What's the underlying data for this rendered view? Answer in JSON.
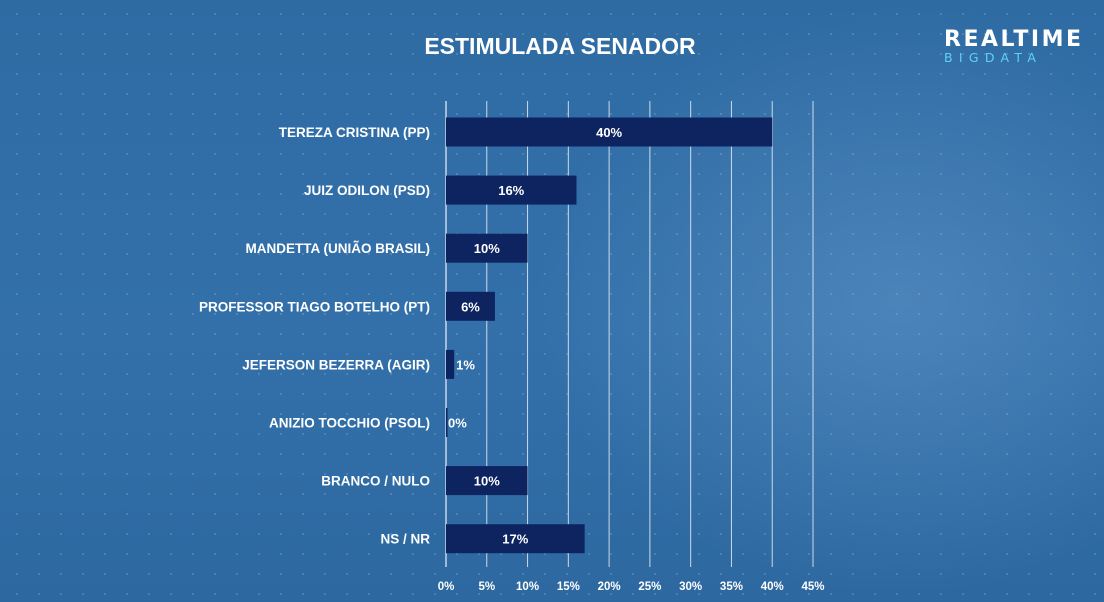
{
  "header": {
    "title": "ESTIMULADA SENADOR",
    "logo_top": "REALTIME",
    "logo_bottom": "BIGDATA"
  },
  "colors": {
    "background": "#2f6ba3",
    "bar": "#0d2461",
    "gridline": "#ffffff",
    "logo_accent": "#5fd3f3"
  },
  "chart_data": {
    "type": "bar",
    "orientation": "horizontal",
    "categories": [
      "TEREZA CRISTINA (PP)",
      "JUIZ ODILON (PSD)",
      "MANDETTA (UNIÃO BRASIL)",
      "PROFESSOR TIAGO BOTELHO (PT)",
      "JEFERSON BEZERRA (AGIR)",
      "ANIZIO TOCCHIO (PSOL)",
      "BRANCO / NULO",
      "NS / NR"
    ],
    "values": [
      40,
      16,
      10,
      6,
      1,
      0,
      10,
      17
    ],
    "value_labels": [
      "40%",
      "16%",
      "10%",
      "6%",
      "1%",
      "0%",
      "10%",
      "17%"
    ],
    "title": "ESTIMULADA SENADOR",
    "xlabel": "",
    "ylabel": "",
    "xlim": [
      0,
      45
    ],
    "ticks": [
      0,
      5,
      10,
      15,
      20,
      25,
      30,
      35,
      40,
      45
    ],
    "tick_labels": [
      "0%",
      "5%",
      "10%",
      "15%",
      "20%",
      "25%",
      "30%",
      "35%",
      "40%",
      "45%"
    ],
    "grid": true,
    "legend": "none"
  }
}
